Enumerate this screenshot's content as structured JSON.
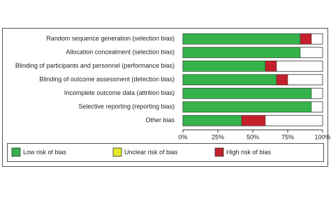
{
  "chart_data": {
    "type": "bar",
    "orientation": "horizontal",
    "stacked": true,
    "categories": [
      "Random sequence generation (selection bias)",
      "Allocation concealment (selection bias)",
      "Blinding of participants and personnel (performance bias)",
      "Blinding of outcome assessment (detection bias)",
      "Incomplete outcome data (attrition bias)",
      "Selective reporting (reporting bias)",
      "Other bias"
    ],
    "series": [
      {
        "name": "Low risk of bias",
        "color": "#35b24a",
        "values": [
          84,
          84,
          59,
          67,
          92,
          92,
          42
        ]
      },
      {
        "name": "Unclear risk of bias",
        "color": "#e6e62e",
        "values": [
          0,
          0,
          0,
          0,
          0,
          0,
          0
        ]
      },
      {
        "name": "High risk of bias",
        "color": "#c3202b",
        "values": [
          8,
          0,
          8,
          8,
          0,
          0,
          17
        ]
      }
    ],
    "xlim": [
      0,
      100
    ],
    "xticks": [
      {
        "value": 0,
        "label": "0%"
      },
      {
        "value": 25,
        "label": "25%"
      },
      {
        "value": 50,
        "label": "50%"
      },
      {
        "value": 75,
        "label": "75%"
      },
      {
        "value": 100,
        "label": "100%"
      }
    ]
  }
}
